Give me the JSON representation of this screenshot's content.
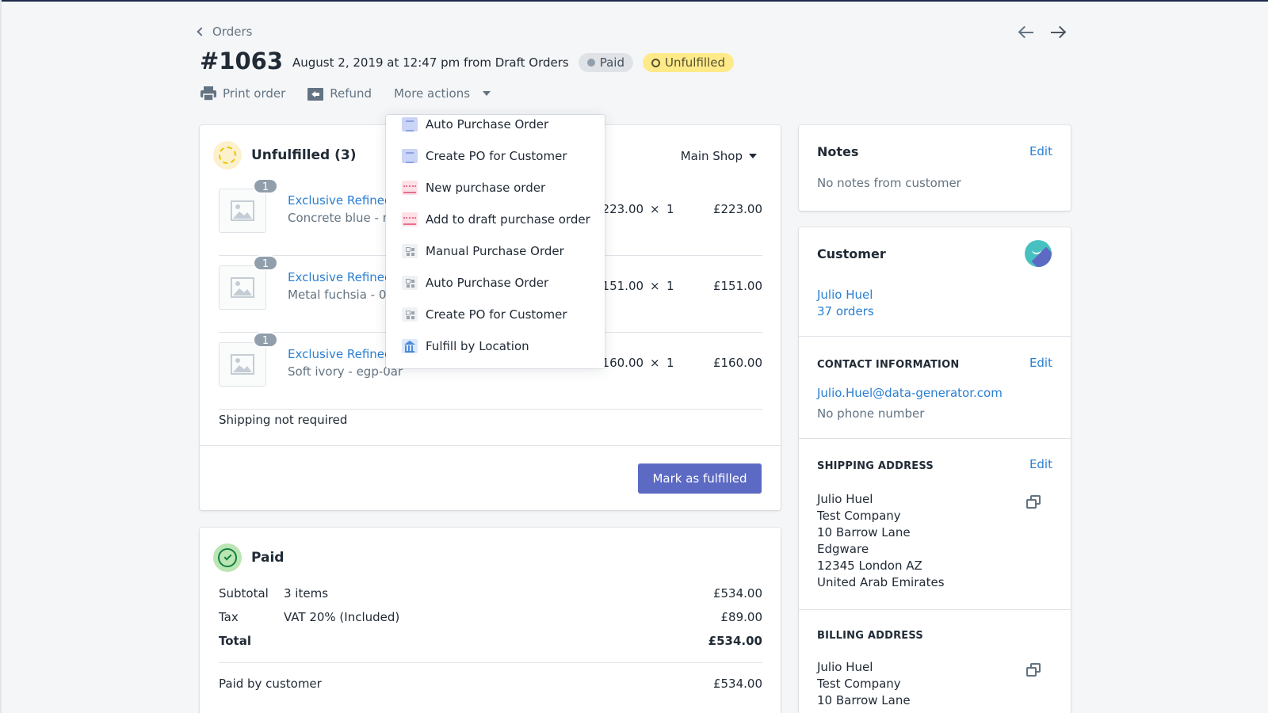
{
  "header": {
    "breadcrumb": "Orders",
    "order_number": "#1063",
    "order_meta": "August 2, 2019 at 12:47 pm from Draft Orders",
    "badges": {
      "paid": "Paid",
      "unfulfilled": "Unfulfilled"
    },
    "actions": {
      "print": "Print order",
      "refund": "Refund",
      "more": "More actions"
    }
  },
  "dropdown": {
    "items": [
      {
        "label": "Auto Purchase Order",
        "icon": "doc-icon"
      },
      {
        "label": "Create PO for Customer",
        "icon": "doc-icon"
      },
      {
        "label": "New purchase order",
        "icon": "purchase-app-icon"
      },
      {
        "label": "Add to draft purchase order",
        "icon": "purchase-app-icon"
      },
      {
        "label": "Manual Purchase Order",
        "icon": "grid-icon"
      },
      {
        "label": "Auto Purchase Order",
        "icon": "grid-icon"
      },
      {
        "label": "Create PO for Customer",
        "icon": "grid-icon"
      },
      {
        "label": "Fulfill by Location",
        "icon": "bank-icon"
      }
    ]
  },
  "unfulfilled": {
    "title": "Unfulfilled (3)",
    "location": "Main Shop",
    "items": [
      {
        "qty_badge": "1",
        "name": "Exclusive Refined",
        "variant": "Concrete blue - n",
        "price": "£223.00",
        "times": "×",
        "qty": "1",
        "total": "£223.00"
      },
      {
        "qty_badge": "1",
        "name": "Exclusive Refined",
        "variant": "Metal fuchsia - 0",
        "price": "£151.00",
        "times": "×",
        "qty": "1",
        "total": "£151.00"
      },
      {
        "qty_badge": "1",
        "name": "Exclusive Refined",
        "variant": "Soft ivory - egp-0ar",
        "price": "£160.00",
        "times": "×",
        "qty": "1",
        "total": "£160.00"
      }
    ],
    "shipping_note": "Shipping not required",
    "fulfill_button": "Mark as fulfilled"
  },
  "paid": {
    "title": "Paid",
    "subtotal": {
      "label": "Subtotal",
      "desc": "3 items",
      "amount": "£534.00"
    },
    "tax": {
      "label": "Tax",
      "desc": "VAT 20% (Included)",
      "amount": "£89.00"
    },
    "total": {
      "label": "Total",
      "amount": "£534.00"
    },
    "paid_by": {
      "label": "Paid by customer",
      "amount": "£534.00"
    }
  },
  "notes": {
    "title": "Notes",
    "edit": "Edit",
    "text": "No notes from customer"
  },
  "customer": {
    "title": "Customer",
    "name": "Julio Huel",
    "orders": "37 orders",
    "contact_label": "CONTACT INFORMATION",
    "contact_edit": "Edit",
    "email": "Julio.Huel@data-generator.com",
    "phone": "No phone number",
    "shipping_label": "SHIPPING ADDRESS",
    "shipping_edit": "Edit",
    "shipping_address": [
      "Julio Huel",
      "Test Company",
      "10 Barrow Lane",
      "Edgware",
      "12345 London AZ",
      "United Arab Emirates"
    ],
    "billing_label": "BILLING ADDRESS",
    "billing_address": [
      "Julio Huel",
      "Test Company",
      "10 Barrow Lane"
    ]
  },
  "colors": {
    "primary": "#5c6ac4",
    "link": "#2a7fd1",
    "unfulfilled_badge": "#ffea8a",
    "paid_badge": "#dfe3e8"
  }
}
